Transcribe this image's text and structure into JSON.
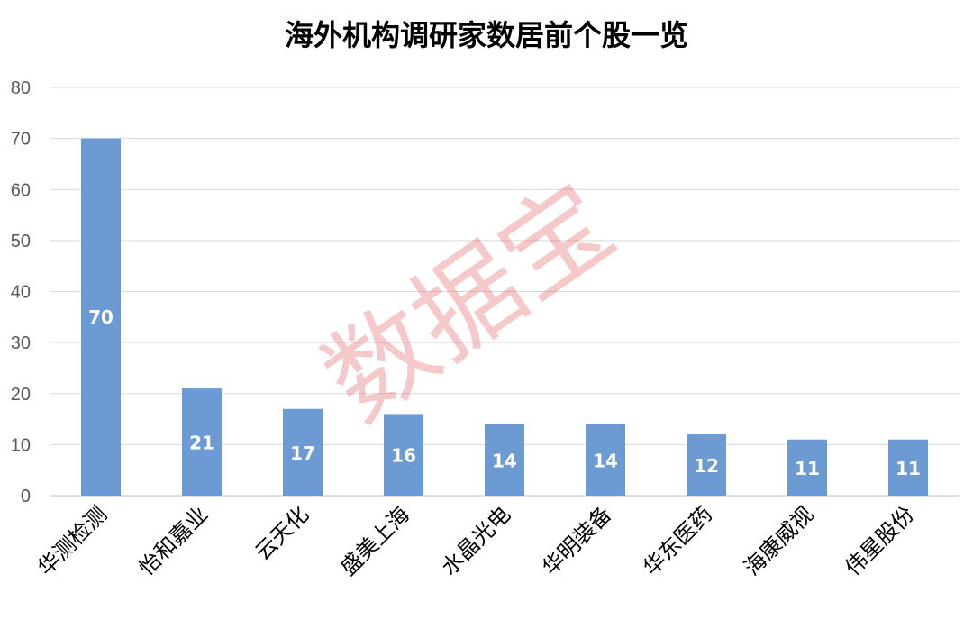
{
  "chart_data": {
    "type": "bar",
    "title": "海外机构调研家数居前个股一览",
    "categories": [
      "华测检测",
      "怡和嘉业",
      "云天化",
      "盛美上海",
      "水晶光电",
      "华明装备",
      "华东医药",
      "海康威视",
      "伟星股份"
    ],
    "values": [
      70,
      21,
      17,
      16,
      14,
      14,
      12,
      11,
      11
    ],
    "ylim": [
      0,
      80
    ],
    "yticks": [
      0,
      10,
      20,
      30,
      40,
      50,
      60,
      70,
      80
    ],
    "xlabel": "",
    "ylabel": "",
    "grid": true,
    "legend": "none",
    "data_labels": true,
    "bar_color": "#6b9bd2"
  },
  "watermark": "数据宝"
}
